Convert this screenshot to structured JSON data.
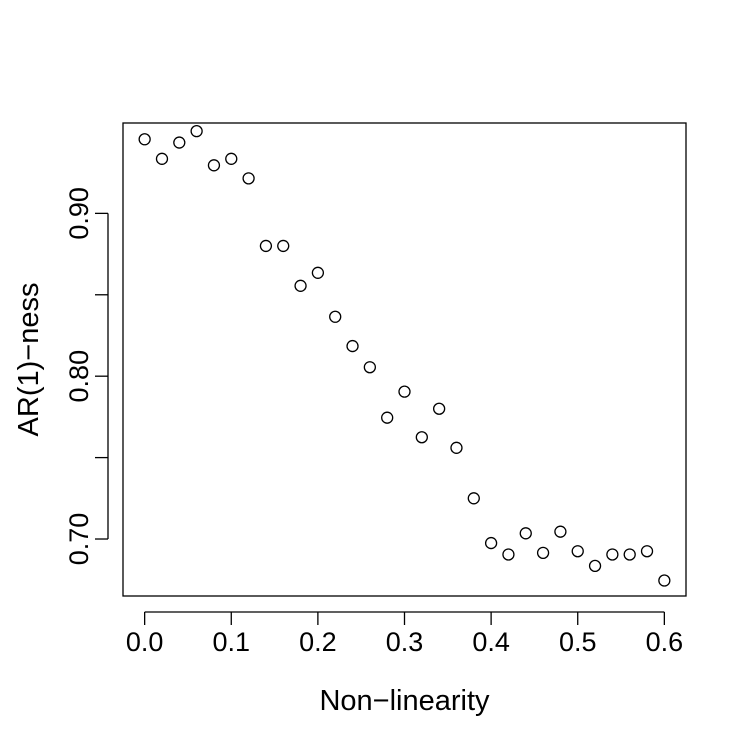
{
  "chart_data": {
    "type": "scatter",
    "title": "",
    "xlabel": "Non−linearity",
    "ylabel": "AR(1)−ness",
    "xlim": [
      -0.025,
      0.625
    ],
    "ylim": [
      0.665,
      0.9555
    ],
    "grid": false,
    "marker": "open-circle",
    "x_ticks": [
      0.0,
      0.1,
      0.2,
      0.3,
      0.4,
      0.5,
      0.6
    ],
    "x_tick_labels": [
      "0.0",
      "0.1",
      "0.2",
      "0.3",
      "0.4",
      "0.5",
      "0.6"
    ],
    "y_ticks": [
      0.7,
      0.75,
      0.8,
      0.85,
      0.9
    ],
    "y_tick_labels": [
      "0.70",
      "",
      "0.80",
      "",
      "0.90"
    ],
    "series": [
      {
        "x": [
          0.0,
          0.02,
          0.04,
          0.06,
          0.08,
          0.1,
          0.12,
          0.14,
          0.16,
          0.18,
          0.2,
          0.22,
          0.24,
          0.26,
          0.28,
          0.3,
          0.32,
          0.34,
          0.36,
          0.38,
          0.4,
          0.42,
          0.44,
          0.46,
          0.48,
          0.5,
          0.52,
          0.54,
          0.56,
          0.58,
          0.6
        ],
        "y": [
          0.9455,
          0.9335,
          0.9435,
          0.9505,
          0.9295,
          0.9335,
          0.9215,
          0.88,
          0.88,
          0.8555,
          0.8635,
          0.8365,
          0.8185,
          0.8055,
          0.7745,
          0.7905,
          0.7625,
          0.78,
          0.756,
          0.725,
          0.6975,
          0.6905,
          0.7035,
          0.6915,
          0.7045,
          0.6925,
          0.6835,
          0.6905,
          0.6905,
          0.6925,
          0.6745
        ]
      }
    ]
  }
}
